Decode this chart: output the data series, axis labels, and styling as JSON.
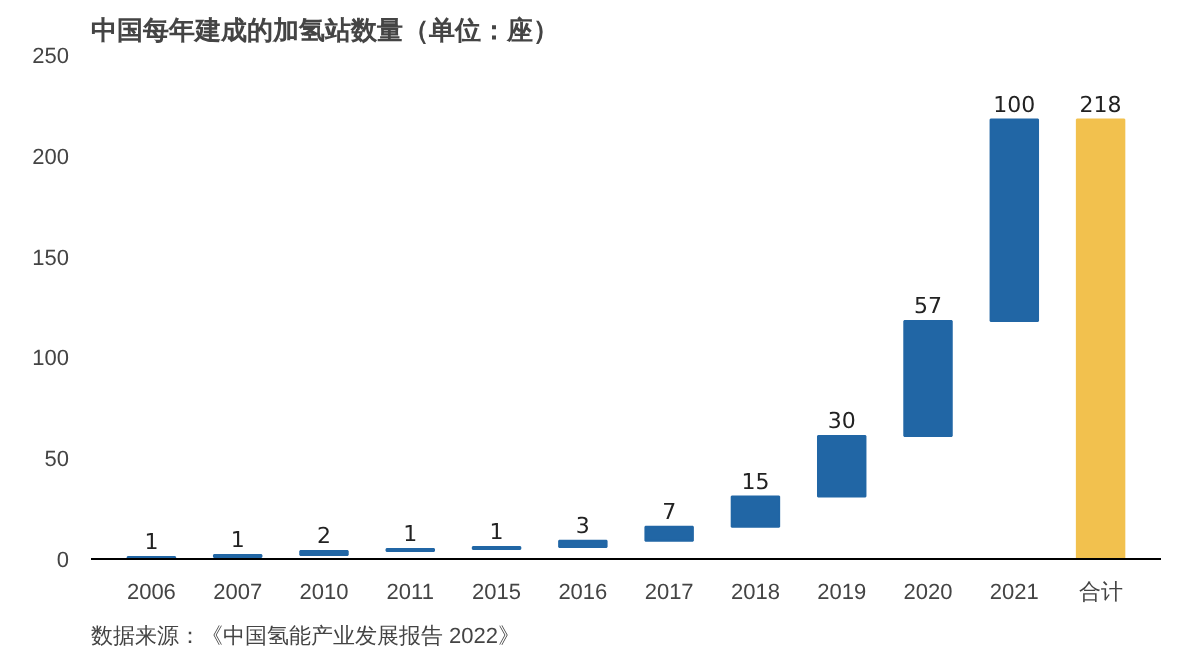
{
  "chart_data": {
    "type": "bar",
    "title": "中国每年建成的加氢站数量（单位：座）",
    "categories": [
      "2006",
      "2007",
      "2010",
      "2011",
      "2015",
      "2016",
      "2017",
      "2018",
      "2019",
      "2020",
      "2021",
      "合计"
    ],
    "values": [
      1,
      1,
      2,
      1,
      1,
      3,
      7,
      15,
      30,
      57,
      100,
      218
    ],
    "base": [
      0,
      1,
      2,
      4,
      5,
      6,
      9,
      16,
      31,
      61,
      118,
      0
    ],
    "colors": [
      "#2166a5",
      "#2166a5",
      "#2166a5",
      "#2166a5",
      "#2166a5",
      "#2166a5",
      "#2166a5",
      "#2166a5",
      "#2166a5",
      "#2166a5",
      "#2166a5",
      "#f2c14e"
    ],
    "ylim": [
      0,
      250
    ],
    "yticks": [
      0,
      50,
      100,
      150,
      200,
      250
    ],
    "data_labels": true,
    "grid": false,
    "annotations": [
      "数据来源：《中国氢能产业发展报告 2022》"
    ]
  }
}
